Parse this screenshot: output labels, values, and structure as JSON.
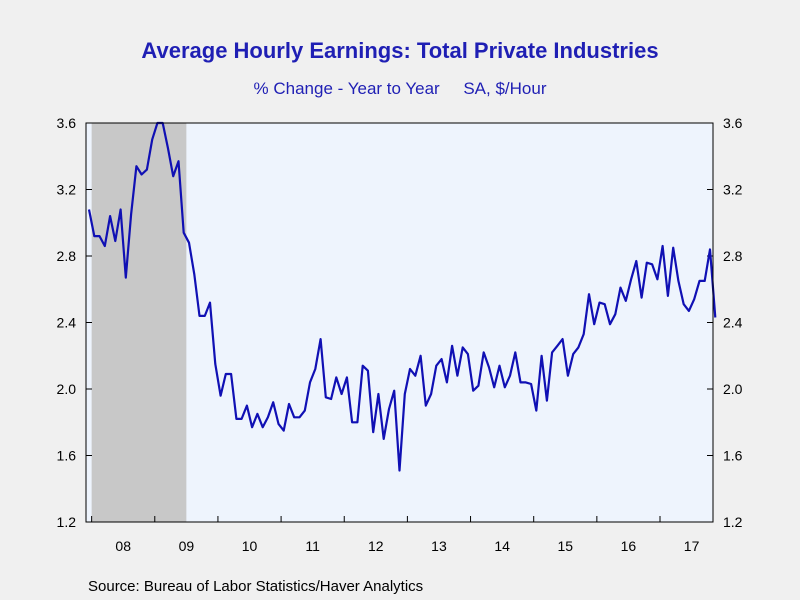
{
  "chart_data": {
    "type": "line",
    "title": "Average Hourly Earnings: Total Private Industries",
    "subtitle": "% Change - Year to Year     SA, $/Hour",
    "xlabel": "",
    "ylabel": "",
    "x_tick_labels": [
      "08",
      "09",
      "10",
      "11",
      "12",
      "13",
      "14",
      "15",
      "16",
      "17"
    ],
    "y_ticks": [
      "1.2",
      "1.6",
      "2.0",
      "2.4",
      "2.8",
      "3.2",
      "3.6"
    ],
    "ylim": [
      1.2,
      3.6
    ],
    "x_start": "2007-12",
    "x_end": "2017-10",
    "recession_shading": {
      "start": "2008-01",
      "end": "2009-06",
      "color": "#c8c8c8"
    },
    "plot_background": "#eef4fd",
    "line_color": "#1010b4",
    "series": [
      {
        "values": [
          3.08,
          2.92,
          2.92,
          2.86,
          3.04,
          2.89,
          3.08,
          2.67,
          3.05,
          3.34,
          3.29,
          3.32,
          3.5,
          3.6,
          3.6,
          3.45,
          3.28,
          3.37,
          2.94,
          2.88,
          2.69,
          2.44,
          2.44,
          2.52,
          2.15,
          1.96,
          2.09,
          2.09,
          1.82,
          1.82,
          1.9,
          1.77,
          1.85,
          1.77,
          1.83,
          1.92,
          1.79,
          1.75,
          1.91,
          1.83,
          1.83,
          1.87,
          2.04,
          2.12,
          2.3,
          1.95,
          1.94,
          2.07,
          1.97,
          2.07,
          1.8,
          1.8,
          2.14,
          2.11,
          1.74,
          1.97,
          1.7,
          1.88,
          1.99,
          1.51,
          1.97,
          2.12,
          2.08,
          2.2,
          1.9,
          1.97,
          2.14,
          2.18,
          2.04,
          2.26,
          2.08,
          2.25,
          2.21,
          1.99,
          2.02,
          2.22,
          2.13,
          2.01,
          2.14,
          2.01,
          2.08,
          2.22,
          2.04,
          2.04,
          2.03,
          1.87,
          2.2,
          1.93,
          2.22,
          2.26,
          2.3,
          2.08,
          2.21,
          2.25,
          2.33,
          2.57,
          2.39,
          2.52,
          2.51,
          2.39,
          2.45,
          2.61,
          2.53,
          2.66,
          2.77,
          2.55,
          2.76,
          2.75,
          2.66,
          2.86,
          2.56,
          2.85,
          2.65,
          2.51,
          2.47,
          2.54,
          2.65,
          2.65,
          2.84,
          2.43
        ]
      }
    ]
  },
  "source": "Source:  Bureau of Labor Statistics/Haver Analytics"
}
